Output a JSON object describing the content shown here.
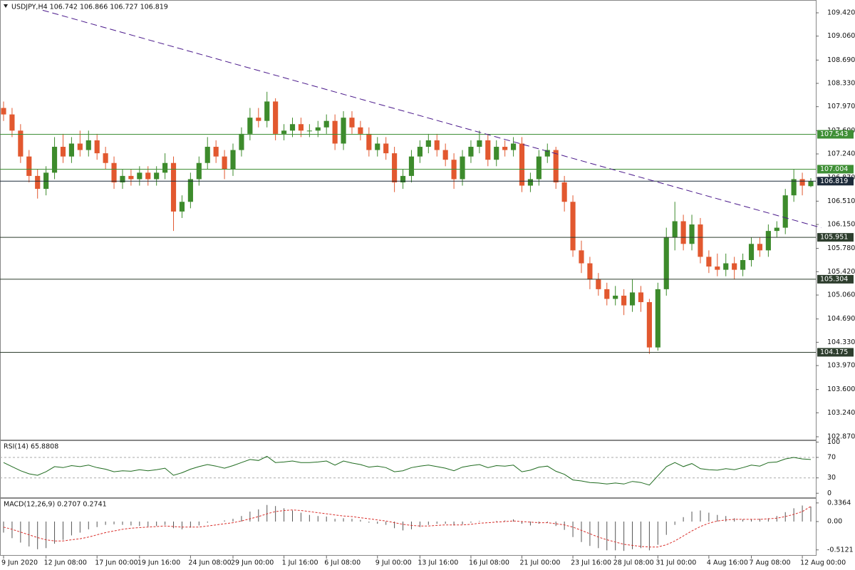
{
  "chart_data": [
    {
      "type": "candlestick",
      "title": "USDJPY,H4  106.742 106.866 106.727 106.819",
      "categories": [
        "9 Jun 2020",
        null,
        null,
        null,
        null,
        "12 Jun 08:00",
        null,
        null,
        null,
        null,
        null,
        "17 Jun 00:00",
        null,
        null,
        null,
        null,
        "19 Jun 16:00",
        null,
        null,
        null,
        null,
        null,
        "24 Jun 08:00",
        null,
        null,
        null,
        null,
        "29 Jun 00:00",
        null,
        null,
        null,
        null,
        null,
        "1 Jul 16:00",
        null,
        null,
        null,
        null,
        "6 Jul 08:00",
        null,
        null,
        null,
        null,
        null,
        "9 Jul 00:00",
        null,
        null,
        null,
        null,
        "13 Jul 16:00",
        null,
        null,
        null,
        null,
        null,
        "16 Jul 08:00",
        null,
        null,
        null,
        null,
        null,
        "21 Jul 00:00",
        null,
        null,
        null,
        null,
        null,
        "23 Jul 16:00",
        null,
        null,
        null,
        null,
        "28 Jul 08:00",
        null,
        null,
        null,
        null,
        "31 Jul 00:00",
        null,
        null,
        null,
        null,
        null,
        "4 Aug 16:00",
        null,
        null,
        null,
        null,
        "7 Aug 08:00",
        null,
        null,
        null,
        null,
        null,
        "12 Aug 00:00",
        null
      ],
      "open": [
        107.95,
        107.85,
        107.6,
        107.2,
        106.9,
        106.7,
        106.95,
        107.35,
        107.2,
        107.4,
        107.3,
        107.45,
        107.25,
        107.1,
        106.8,
        106.9,
        106.85,
        106.95,
        106.85,
        106.95,
        107.1,
        106.35,
        106.5,
        106.85,
        107.1,
        107.35,
        107.2,
        107.0,
        107.3,
        107.55,
        107.8,
        107.75,
        108.05,
        107.55,
        107.6,
        107.7,
        107.6,
        107.6,
        107.65,
        107.75,
        107.4,
        107.8,
        107.65,
        107.55,
        107.3,
        107.4,
        107.25,
        106.8,
        106.9,
        107.2,
        107.35,
        107.45,
        107.3,
        107.15,
        106.85,
        107.2,
        107.35,
        107.45,
        107.15,
        107.35,
        107.3,
        107.4,
        106.75,
        106.85,
        107.2,
        107.3,
        106.8,
        106.5,
        105.75,
        105.55,
        105.3,
        105.15,
        105.0,
        105.05,
        104.9,
        105.1,
        104.95,
        104.25,
        105.15,
        105.95,
        106.2,
        105.85,
        106.15,
        105.65,
        105.5,
        105.45,
        105.55,
        105.45,
        105.6,
        105.85,
        105.75,
        106.05,
        106.1,
        106.6,
        106.85,
        106.742
      ],
      "high": [
        108.05,
        107.95,
        107.7,
        107.3,
        107.0,
        107.05,
        107.5,
        107.55,
        107.5,
        107.6,
        107.6,
        107.55,
        107.35,
        107.2,
        107.0,
        107.0,
        107.05,
        107.05,
        107.05,
        107.25,
        107.2,
        106.6,
        106.95,
        107.2,
        107.5,
        107.45,
        107.3,
        107.4,
        107.65,
        107.95,
        107.95,
        108.2,
        108.1,
        107.7,
        107.8,
        107.8,
        107.7,
        107.75,
        107.85,
        107.85,
        107.9,
        107.9,
        107.75,
        107.65,
        107.5,
        107.5,
        107.35,
        107.0,
        107.3,
        107.45,
        107.55,
        107.55,
        107.4,
        107.25,
        107.3,
        107.45,
        107.6,
        107.55,
        107.45,
        107.45,
        107.5,
        107.5,
        106.95,
        107.3,
        107.4,
        107.35,
        106.9,
        106.6,
        105.9,
        105.65,
        105.4,
        105.25,
        105.2,
        105.15,
        105.3,
        105.2,
        105.0,
        105.25,
        106.1,
        106.5,
        106.3,
        106.3,
        106.25,
        105.75,
        105.7,
        105.7,
        105.65,
        105.7,
        105.95,
        105.95,
        106.15,
        106.2,
        106.7,
        107.0,
        106.95,
        106.866
      ],
      "low": [
        107.75,
        107.5,
        107.1,
        106.8,
        106.55,
        106.6,
        106.85,
        107.1,
        107.1,
        107.2,
        107.2,
        107.15,
        107.0,
        106.7,
        106.7,
        106.75,
        106.75,
        106.75,
        106.75,
        106.85,
        106.05,
        106.25,
        106.4,
        106.75,
        107.0,
        107.1,
        106.85,
        106.9,
        107.2,
        107.45,
        107.65,
        107.65,
        107.45,
        107.45,
        107.5,
        107.5,
        107.5,
        107.5,
        107.55,
        107.3,
        107.3,
        107.55,
        107.45,
        107.2,
        107.2,
        107.15,
        106.65,
        106.7,
        106.8,
        107.1,
        107.25,
        107.2,
        107.05,
        106.7,
        106.75,
        107.1,
        107.25,
        107.05,
        107.05,
        107.2,
        107.2,
        106.65,
        106.65,
        106.75,
        107.1,
        106.7,
        106.35,
        105.65,
        105.4,
        105.15,
        105.05,
        104.9,
        104.9,
        104.75,
        104.8,
        104.8,
        104.15,
        104.2,
        105.05,
        105.75,
        105.75,
        105.75,
        105.55,
        105.4,
        105.35,
        105.35,
        105.3,
        105.35,
        105.5,
        105.65,
        105.65,
        105.95,
        106.0,
        106.5,
        106.6,
        106.727
      ],
      "close": [
        107.85,
        107.6,
        107.2,
        106.9,
        106.7,
        106.95,
        107.35,
        107.2,
        107.4,
        107.3,
        107.45,
        107.25,
        107.1,
        106.8,
        106.9,
        106.85,
        106.95,
        106.85,
        106.95,
        107.1,
        106.35,
        106.5,
        106.85,
        107.1,
        107.35,
        107.2,
        107.0,
        107.3,
        107.55,
        107.8,
        107.75,
        108.05,
        107.55,
        107.6,
        107.7,
        107.6,
        107.6,
        107.65,
        107.75,
        107.4,
        107.8,
        107.65,
        107.55,
        107.3,
        107.4,
        107.25,
        106.8,
        106.9,
        107.2,
        107.35,
        107.45,
        107.3,
        107.15,
        106.85,
        107.2,
        107.35,
        107.45,
        107.15,
        107.35,
        107.3,
        107.4,
        106.75,
        106.85,
        107.2,
        107.3,
        106.8,
        106.5,
        105.75,
        105.55,
        105.3,
        105.15,
        105.0,
        105.05,
        104.9,
        105.1,
        104.95,
        104.25,
        105.15,
        105.95,
        106.2,
        105.85,
        106.15,
        105.65,
        105.5,
        105.45,
        105.55,
        105.45,
        105.6,
        105.85,
        105.75,
        106.05,
        106.1,
        106.6,
        106.85,
        106.75,
        106.819
      ],
      "up_color": "#3d8b2c",
      "down_color": "#e2582f",
      "ylim": [
        102.826,
        109.607
      ],
      "yticks": [
        {
          "value": 109.42,
          "label": "109.420"
        },
        {
          "value": 109.06,
          "label": "109.060"
        },
        {
          "value": 108.69,
          "label": "108.690"
        },
        {
          "value": 108.33,
          "label": "108.330"
        },
        {
          "value": 107.97,
          "label": "107.970"
        },
        {
          "value": 107.6,
          "label": "107.600"
        },
        {
          "value": 107.24,
          "label": "107.240"
        },
        {
          "value": 106.87,
          "label": "106.870"
        },
        {
          "value": 106.51,
          "label": "106.510"
        },
        {
          "value": 106.15,
          "label": "106.150"
        },
        {
          "value": 105.78,
          "label": "105.780"
        },
        {
          "value": 105.42,
          "label": "105.420"
        },
        {
          "value": 105.06,
          "label": "105.060"
        },
        {
          "value": 104.69,
          "label": "104.690"
        },
        {
          "value": 104.33,
          "label": "104.330"
        },
        {
          "value": 103.97,
          "label": "103.970"
        },
        {
          "value": 103.6,
          "label": "103.600"
        },
        {
          "value": 103.24,
          "label": "103.240"
        },
        {
          "value": 102.87,
          "label": "102.870"
        }
      ],
      "hlines": [
        {
          "value": 107.543,
          "color": "#3f8f36"
        },
        {
          "value": 107.004,
          "color": "#3f8f36"
        },
        {
          "value": 106.819,
          "color": "#1d2b3a"
        },
        {
          "value": 105.951,
          "color": "#2e3e2e"
        },
        {
          "value": 105.304,
          "color": "#2e3e2e"
        },
        {
          "value": 104.175,
          "color": "#2e3e2e"
        }
      ],
      "trendline": {
        "start": [
          4.6,
          109.46
        ],
        "end": [
          96.2,
          106.1
        ],
        "color": "#4b1a8c"
      }
    },
    {
      "type": "line",
      "title": "RSI(14) 65.8808",
      "values": [
        60,
        52,
        44,
        38,
        35,
        42,
        52,
        50,
        54,
        52,
        55,
        50,
        47,
        42,
        44,
        43,
        46,
        44,
        46,
        49,
        35,
        40,
        47,
        52,
        56,
        53,
        49,
        54,
        60,
        66,
        64,
        72,
        60,
        61,
        63,
        60,
        60,
        61,
        63,
        55,
        63,
        59,
        56,
        51,
        53,
        50,
        42,
        44,
        50,
        53,
        55,
        52,
        49,
        44,
        51,
        54,
        56,
        50,
        54,
        53,
        55,
        42,
        45,
        51,
        53,
        43,
        37,
        26,
        24,
        21,
        20,
        18,
        20,
        18,
        23,
        21,
        16,
        34,
        52,
        60,
        52,
        58,
        48,
        46,
        45,
        48,
        46,
        50,
        55,
        53,
        60,
        61,
        67,
        70,
        67,
        65.8808
      ],
      "color": "#1f6b1f",
      "ylim": [
        -8,
        102
      ],
      "yticks": [
        100,
        70,
        30,
        0
      ],
      "levels": [
        70,
        30
      ]
    },
    {
      "type": "macd",
      "title": "MACD(12,26,9) 0.2707 0.2741",
      "histogram": [
        -0.2,
        -0.3,
        -0.38,
        -0.45,
        -0.5,
        -0.48,
        -0.4,
        -0.33,
        -0.25,
        -0.2,
        -0.14,
        -0.1,
        -0.06,
        -0.05,
        -0.06,
        -0.07,
        -0.08,
        -0.09,
        -0.08,
        -0.06,
        -0.12,
        -0.14,
        -0.11,
        -0.07,
        -0.02,
        0.0,
        0.02,
        0.05,
        0.1,
        0.18,
        0.22,
        0.3,
        0.28,
        0.24,
        0.2,
        0.16,
        0.12,
        0.1,
        0.09,
        0.05,
        0.06,
        0.05,
        0.03,
        -0.02,
        -0.04,
        -0.06,
        -0.12,
        -0.16,
        -0.14,
        -0.1,
        -0.06,
        -0.04,
        -0.04,
        -0.07,
        -0.05,
        -0.02,
        0.01,
        0.0,
        0.01,
        0.02,
        0.04,
        -0.04,
        -0.07,
        -0.04,
        -0.02,
        -0.08,
        -0.15,
        -0.28,
        -0.37,
        -0.44,
        -0.48,
        -0.52,
        -0.52,
        -0.53,
        -0.5,
        -0.48,
        -0.52,
        -0.42,
        -0.24,
        -0.06,
        0.08,
        0.18,
        0.2,
        0.16,
        0.12,
        0.1,
        0.06,
        0.04,
        0.04,
        0.05,
        0.06,
        0.1,
        0.17,
        0.24,
        0.29,
        0.2707
      ],
      "signal": [
        -0.1,
        -0.14,
        -0.19,
        -0.24,
        -0.29,
        -0.33,
        -0.35,
        -0.35,
        -0.33,
        -0.31,
        -0.28,
        -0.24,
        -0.2,
        -0.17,
        -0.14,
        -0.12,
        -0.11,
        -0.1,
        -0.09,
        -0.08,
        -0.09,
        -0.1,
        -0.1,
        -0.1,
        -0.08,
        -0.06,
        -0.04,
        -0.02,
        0.01,
        0.05,
        0.09,
        0.14,
        0.18,
        0.2,
        0.21,
        0.2,
        0.18,
        0.16,
        0.14,
        0.12,
        0.1,
        0.09,
        0.07,
        0.05,
        0.03,
        0.01,
        -0.02,
        -0.05,
        -0.07,
        -0.08,
        -0.08,
        -0.07,
        -0.06,
        -0.06,
        -0.06,
        -0.05,
        -0.03,
        -0.02,
        -0.01,
        0.0,
        0.01,
        0.0,
        -0.01,
        -0.02,
        -0.02,
        -0.04,
        -0.06,
        -0.1,
        -0.16,
        -0.22,
        -0.28,
        -0.33,
        -0.37,
        -0.41,
        -0.43,
        -0.45,
        -0.46,
        -0.46,
        -0.42,
        -0.35,
        -0.26,
        -0.17,
        -0.09,
        -0.03,
        0.01,
        0.03,
        0.04,
        0.04,
        0.04,
        0.04,
        0.05,
        0.06,
        0.09,
        0.13,
        0.18,
        0.2741
      ],
      "histogram_color": "#555555",
      "signal_color": "#d9302c",
      "ylim": [
        -0.605,
        0.412
      ],
      "yticks": [
        0.3364,
        {
          "value": 0,
          "label": "0.00"
        },
        -0.5121
      ]
    }
  ]
}
